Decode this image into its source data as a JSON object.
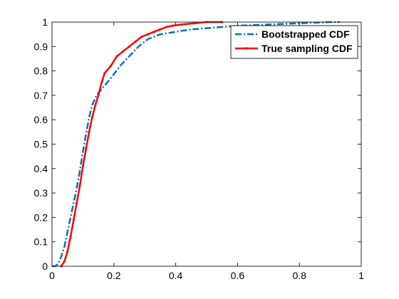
{
  "chart_data": {
    "type": "line",
    "title": "",
    "xlabel": "",
    "ylabel": "",
    "xlim": [
      0,
      1
    ],
    "ylim": [
      0,
      1
    ],
    "xticks": [
      0,
      0.2,
      0.4,
      0.6,
      0.8,
      1
    ],
    "yticks": [
      0,
      0.1,
      0.2,
      0.3,
      0.4,
      0.5,
      0.6,
      0.7,
      0.8,
      0.9,
      1
    ],
    "xtick_labels": [
      "0",
      "0.2",
      "0.4",
      "0.6",
      "0.8",
      "1"
    ],
    "ytick_labels": [
      "0",
      "0.1",
      "0.2",
      "0.3",
      "0.4",
      "0.5",
      "0.6",
      "0.7",
      "0.8",
      "0.9",
      "1"
    ],
    "grid": false,
    "legend_position": "top-right",
    "series": [
      {
        "name": "Bootstrapped CDF",
        "color": "#0072BD",
        "style": "dash-dot",
        "x": [
          0.0,
          0.01,
          0.02,
          0.03,
          0.04,
          0.05,
          0.06,
          0.07,
          0.08,
          0.09,
          0.1,
          0.11,
          0.12,
          0.13,
          0.14,
          0.15,
          0.17,
          0.19,
          0.22,
          0.25,
          0.28,
          0.31,
          0.35,
          0.4,
          0.45,
          0.5,
          0.55,
          0.6,
          0.7,
          0.8,
          0.9,
          0.93
        ],
        "y": [
          0.0,
          0.0,
          0.01,
          0.04,
          0.08,
          0.14,
          0.2,
          0.26,
          0.32,
          0.39,
          0.47,
          0.54,
          0.61,
          0.66,
          0.69,
          0.71,
          0.74,
          0.77,
          0.82,
          0.86,
          0.9,
          0.93,
          0.95,
          0.96,
          0.97,
          0.975,
          0.98,
          0.985,
          0.99,
          0.995,
          1.0,
          1.0
        ]
      },
      {
        "name": "True sampling CDF",
        "color": "#FF0000",
        "style": "solid-dot",
        "x": [
          0.03,
          0.04,
          0.05,
          0.06,
          0.07,
          0.08,
          0.09,
          0.1,
          0.11,
          0.12,
          0.13,
          0.14,
          0.15,
          0.16,
          0.17,
          0.19,
          0.21,
          0.23,
          0.25,
          0.27,
          0.29,
          0.31,
          0.33,
          0.35,
          0.37,
          0.39,
          0.42,
          0.46,
          0.5,
          0.55
        ],
        "y": [
          0.0,
          0.02,
          0.06,
          0.12,
          0.19,
          0.26,
          0.33,
          0.41,
          0.48,
          0.55,
          0.61,
          0.66,
          0.7,
          0.75,
          0.79,
          0.82,
          0.86,
          0.88,
          0.9,
          0.92,
          0.94,
          0.95,
          0.96,
          0.97,
          0.98,
          0.985,
          0.99,
          0.995,
          1.0,
          1.0
        ]
      }
    ]
  }
}
